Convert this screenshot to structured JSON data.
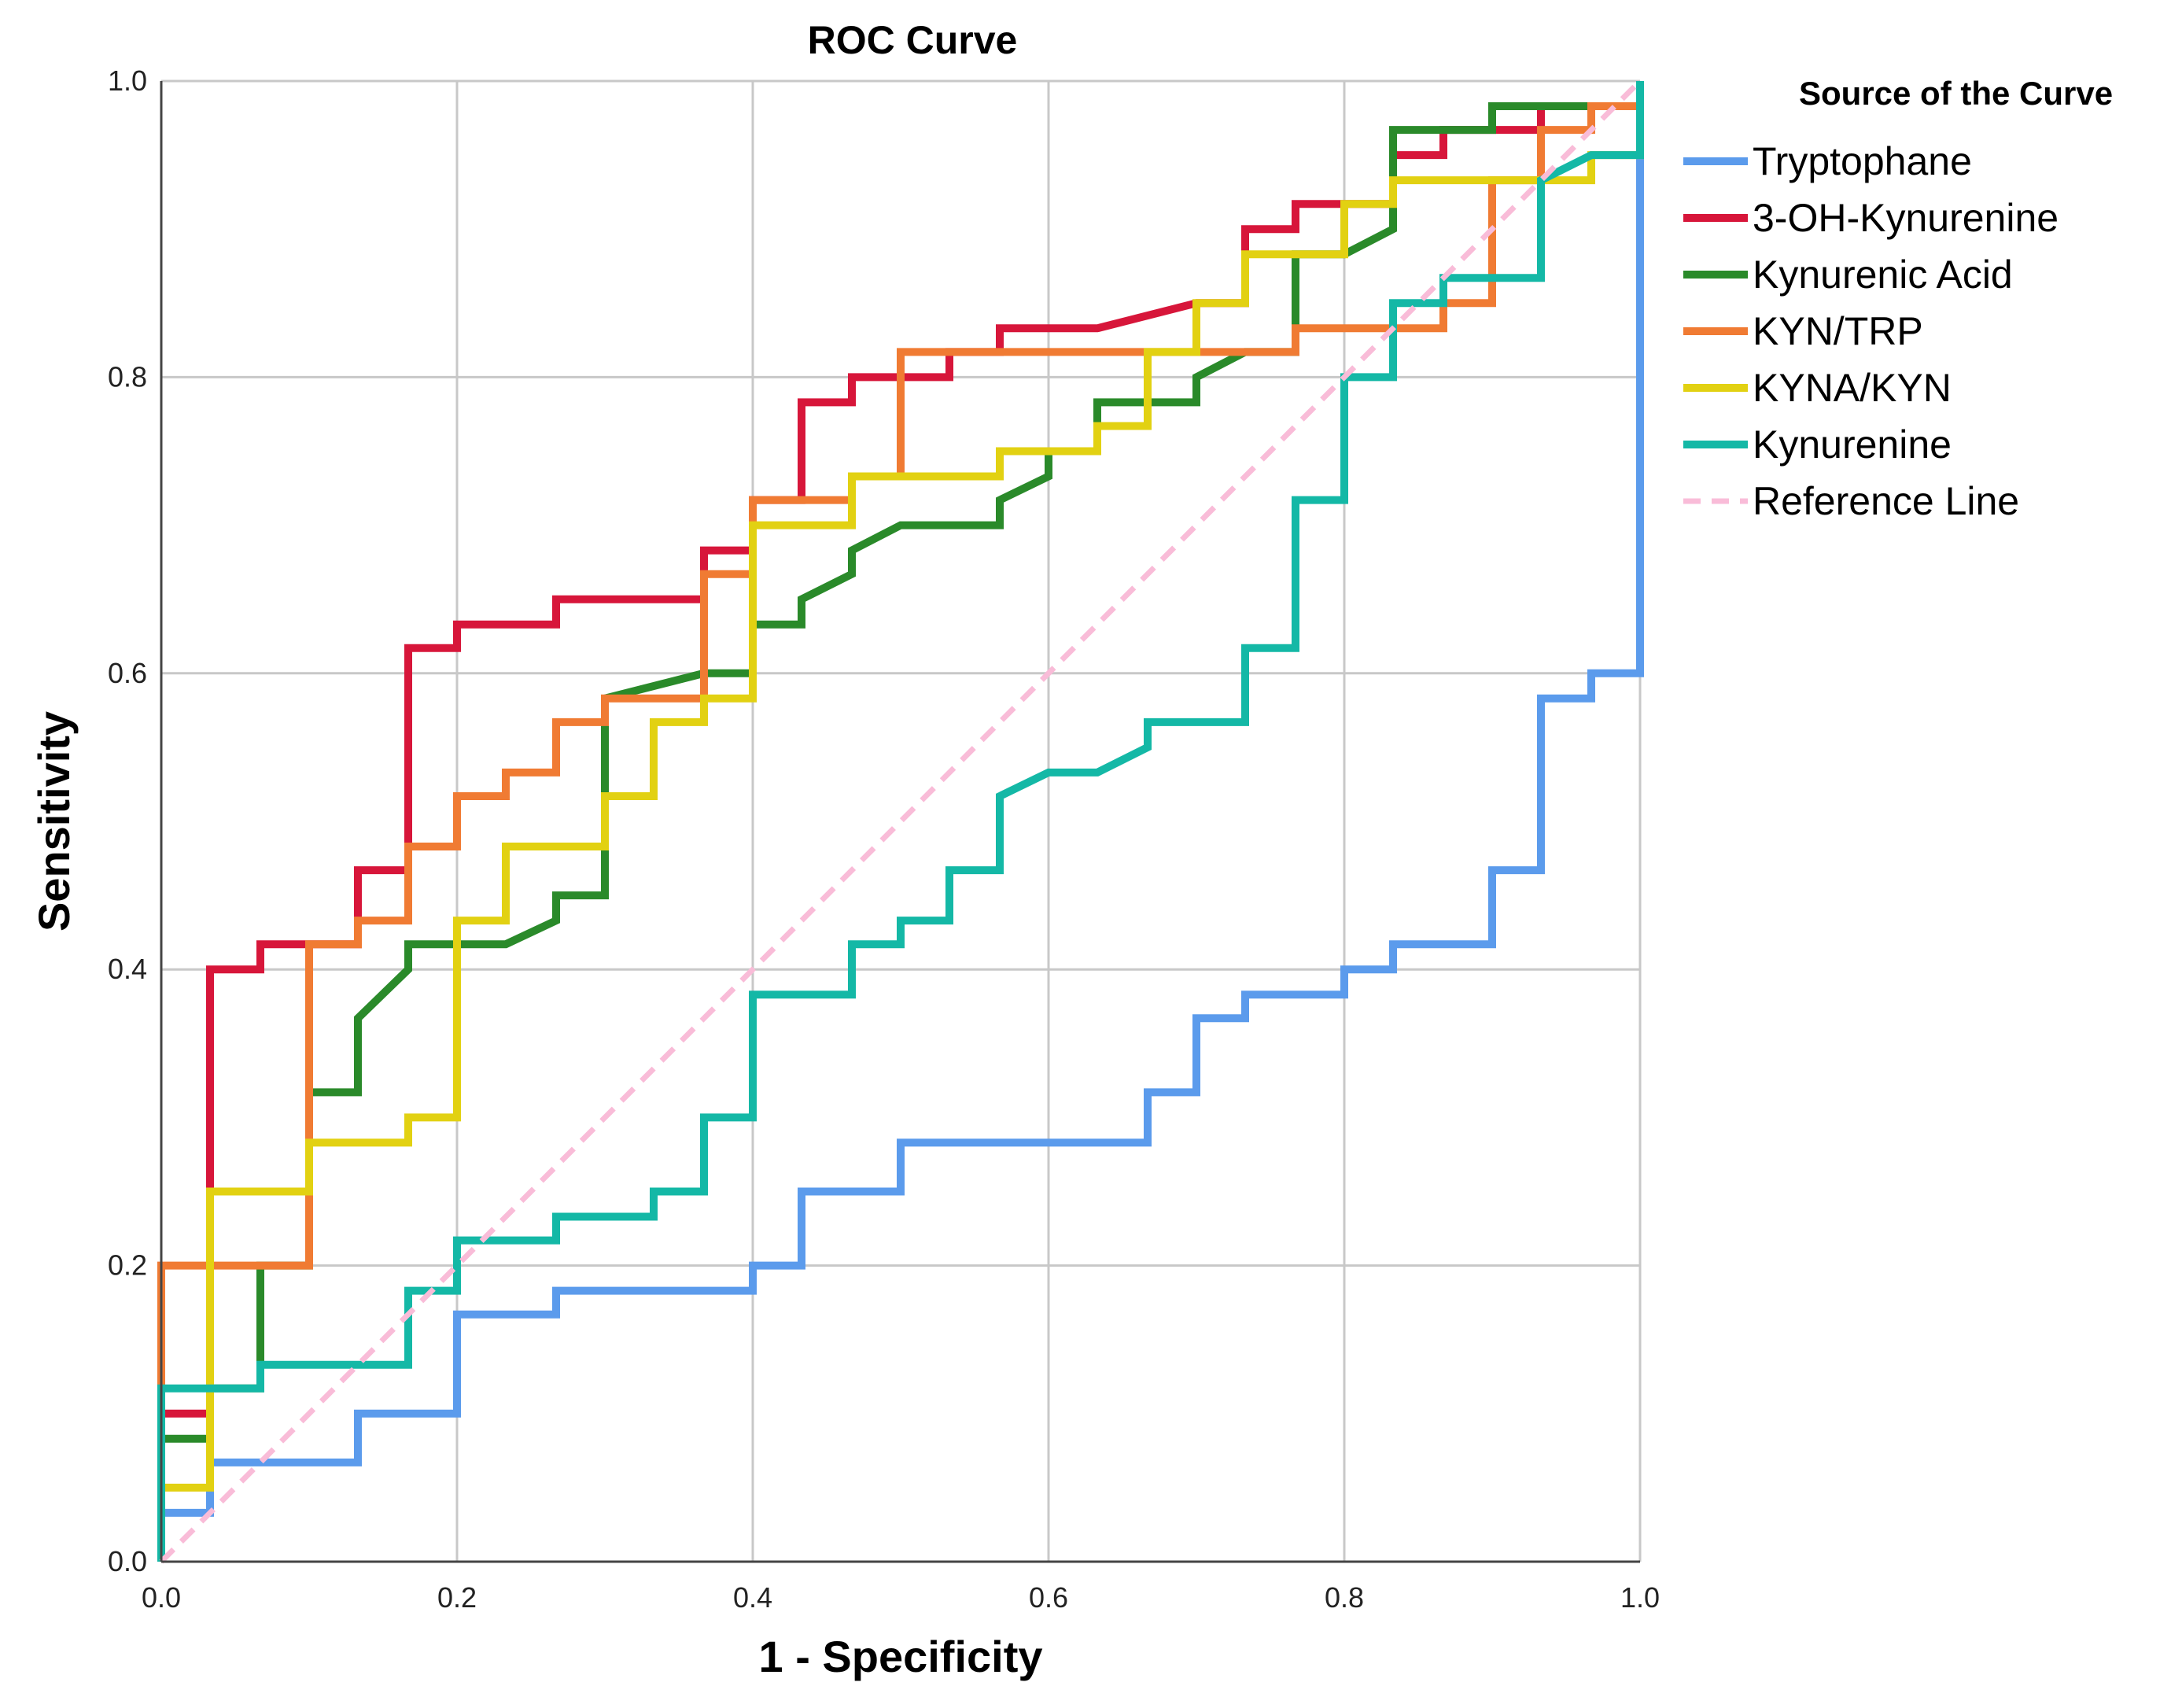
{
  "chart_data": {
    "type": "line",
    "title": "ROC Curve",
    "xlabel": "1 - Specificity",
    "ylabel": "Sensitivity",
    "xlim": [
      0,
      1
    ],
    "ylim": [
      0,
      1
    ],
    "xticks": [
      "0.0",
      "0.2",
      "0.4",
      "0.6",
      "0.8",
      "1.0"
    ],
    "yticks": [
      "0.0",
      "0.2",
      "0.4",
      "0.6",
      "0.8",
      "1.0"
    ],
    "grid": true,
    "legend_title": "Source of the Curve",
    "legend_position": "top-right outside",
    "series": [
      {
        "name": "Tryptophane",
        "color": "#5b9bec",
        "points": [
          [
            0,
            0
          ],
          [
            0,
            0.033
          ],
          [
            0.033,
            0.033
          ],
          [
            0.033,
            0.067
          ],
          [
            0.133,
            0.067
          ],
          [
            0.133,
            0.1
          ],
          [
            0.2,
            0.1
          ],
          [
            0.2,
            0.167
          ],
          [
            0.267,
            0.167
          ],
          [
            0.267,
            0.183
          ],
          [
            0.4,
            0.183
          ],
          [
            0.4,
            0.2
          ],
          [
            0.433,
            0.2
          ],
          [
            0.433,
            0.25
          ],
          [
            0.5,
            0.25
          ],
          [
            0.5,
            0.283
          ],
          [
            0.667,
            0.283
          ],
          [
            0.667,
            0.317
          ],
          [
            0.7,
            0.317
          ],
          [
            0.7,
            0.367
          ],
          [
            0.733,
            0.367
          ],
          [
            0.733,
            0.383
          ],
          [
            0.8,
            0.383
          ],
          [
            0.8,
            0.4
          ],
          [
            0.833,
            0.4
          ],
          [
            0.833,
            0.417
          ],
          [
            0.9,
            0.417
          ],
          [
            0.9,
            0.467
          ],
          [
            0.933,
            0.467
          ],
          [
            0.933,
            0.583
          ],
          [
            0.967,
            0.583
          ],
          [
            0.967,
            0.6
          ],
          [
            1,
            0.6
          ],
          [
            1,
            1
          ]
        ]
      },
      {
        "name": "3-OH-Kynurenine",
        "color": "#d7163a",
        "points": [
          [
            0,
            0
          ],
          [
            0,
            0.1
          ],
          [
            0.033,
            0.1
          ],
          [
            0.033,
            0.4
          ],
          [
            0.067,
            0.4
          ],
          [
            0.067,
            0.417
          ],
          [
            0.133,
            0.417
          ],
          [
            0.133,
            0.467
          ],
          [
            0.167,
            0.467
          ],
          [
            0.167,
            0.617
          ],
          [
            0.2,
            0.617
          ],
          [
            0.2,
            0.633
          ],
          [
            0.267,
            0.633
          ],
          [
            0.267,
            0.65
          ],
          [
            0.367,
            0.65
          ],
          [
            0.367,
            0.683
          ],
          [
            0.4,
            0.683
          ],
          [
            0.4,
            0.717
          ],
          [
            0.433,
            0.717
          ],
          [
            0.433,
            0.783
          ],
          [
            0.467,
            0.783
          ],
          [
            0.467,
            0.8
          ],
          [
            0.533,
            0.8
          ],
          [
            0.533,
            0.817
          ],
          [
            0.567,
            0.817
          ],
          [
            0.567,
            0.833
          ],
          [
            0.633,
            0.833
          ],
          [
            0.7,
            0.85
          ],
          [
            0.733,
            0.85
          ],
          [
            0.733,
            0.9
          ],
          [
            0.767,
            0.9
          ],
          [
            0.767,
            0.917
          ],
          [
            0.833,
            0.917
          ],
          [
            0.833,
            0.95
          ],
          [
            0.867,
            0.95
          ],
          [
            0.867,
            0.967
          ],
          [
            0.933,
            0.967
          ],
          [
            0.933,
            0.983
          ],
          [
            1,
            0.983
          ],
          [
            1,
            1
          ]
        ]
      },
      {
        "name": "Kynurenic Acid",
        "color": "#2a8a2a",
        "points": [
          [
            0,
            0
          ],
          [
            0,
            0.083
          ],
          [
            0.033,
            0.083
          ],
          [
            0.033,
            0.117
          ],
          [
            0.067,
            0.117
          ],
          [
            0.067,
            0.2
          ],
          [
            0.1,
            0.2
          ],
          [
            0.1,
            0.317
          ],
          [
            0.133,
            0.317
          ],
          [
            0.133,
            0.367
          ],
          [
            0.167,
            0.4
          ],
          [
            0.167,
            0.417
          ],
          [
            0.233,
            0.417
          ],
          [
            0.267,
            0.433
          ],
          [
            0.267,
            0.45
          ],
          [
            0.3,
            0.45
          ],
          [
            0.3,
            0.583
          ],
          [
            0.367,
            0.6
          ],
          [
            0.4,
            0.6
          ],
          [
            0.4,
            0.633
          ],
          [
            0.433,
            0.633
          ],
          [
            0.433,
            0.65
          ],
          [
            0.467,
            0.667
          ],
          [
            0.467,
            0.683
          ],
          [
            0.5,
            0.7
          ],
          [
            0.567,
            0.7
          ],
          [
            0.567,
            0.717
          ],
          [
            0.6,
            0.733
          ],
          [
            0.6,
            0.75
          ],
          [
            0.633,
            0.75
          ],
          [
            0.633,
            0.783
          ],
          [
            0.7,
            0.783
          ],
          [
            0.7,
            0.8
          ],
          [
            0.733,
            0.817
          ],
          [
            0.767,
            0.817
          ],
          [
            0.767,
            0.883
          ],
          [
            0.8,
            0.883
          ],
          [
            0.833,
            0.9
          ],
          [
            0.833,
            0.967
          ],
          [
            0.9,
            0.967
          ],
          [
            0.9,
            0.983
          ],
          [
            1,
            0.983
          ],
          [
            1,
            1
          ]
        ]
      },
      {
        "name": "KYN/TRP",
        "color": "#f07b33",
        "points": [
          [
            0,
            0
          ],
          [
            0,
            0.2
          ],
          [
            0.1,
            0.2
          ],
          [
            0.1,
            0.417
          ],
          [
            0.133,
            0.417
          ],
          [
            0.133,
            0.433
          ],
          [
            0.167,
            0.433
          ],
          [
            0.167,
            0.483
          ],
          [
            0.2,
            0.483
          ],
          [
            0.2,
            0.517
          ],
          [
            0.233,
            0.517
          ],
          [
            0.233,
            0.533
          ],
          [
            0.267,
            0.533
          ],
          [
            0.267,
            0.567
          ],
          [
            0.3,
            0.567
          ],
          [
            0.3,
            0.583
          ],
          [
            0.367,
            0.583
          ],
          [
            0.367,
            0.667
          ],
          [
            0.4,
            0.667
          ],
          [
            0.4,
            0.717
          ],
          [
            0.467,
            0.717
          ],
          [
            0.467,
            0.733
          ],
          [
            0.5,
            0.733
          ],
          [
            0.5,
            0.817
          ],
          [
            0.767,
            0.817
          ],
          [
            0.767,
            0.833
          ],
          [
            0.867,
            0.833
          ],
          [
            0.867,
            0.85
          ],
          [
            0.9,
            0.85
          ],
          [
            0.9,
            0.933
          ],
          [
            0.933,
            0.933
          ],
          [
            0.933,
            0.967
          ],
          [
            0.967,
            0.967
          ],
          [
            0.967,
            0.983
          ],
          [
            1,
            0.983
          ],
          [
            1,
            1
          ]
        ]
      },
      {
        "name": "KYNA/KYN",
        "color": "#e2d112",
        "points": [
          [
            0,
            0
          ],
          [
            0,
            0.05
          ],
          [
            0.033,
            0.05
          ],
          [
            0.033,
            0.25
          ],
          [
            0.1,
            0.25
          ],
          [
            0.1,
            0.283
          ],
          [
            0.167,
            0.283
          ],
          [
            0.167,
            0.3
          ],
          [
            0.2,
            0.3
          ],
          [
            0.2,
            0.433
          ],
          [
            0.233,
            0.433
          ],
          [
            0.233,
            0.483
          ],
          [
            0.3,
            0.483
          ],
          [
            0.3,
            0.517
          ],
          [
            0.333,
            0.517
          ],
          [
            0.333,
            0.567
          ],
          [
            0.367,
            0.567
          ],
          [
            0.367,
            0.583
          ],
          [
            0.4,
            0.583
          ],
          [
            0.4,
            0.7
          ],
          [
            0.467,
            0.7
          ],
          [
            0.467,
            0.733
          ],
          [
            0.567,
            0.733
          ],
          [
            0.567,
            0.75
          ],
          [
            0.633,
            0.75
          ],
          [
            0.633,
            0.767
          ],
          [
            0.667,
            0.767
          ],
          [
            0.667,
            0.817
          ],
          [
            0.7,
            0.817
          ],
          [
            0.7,
            0.85
          ],
          [
            0.733,
            0.85
          ],
          [
            0.733,
            0.883
          ],
          [
            0.8,
            0.883
          ],
          [
            0.8,
            0.917
          ],
          [
            0.833,
            0.917
          ],
          [
            0.833,
            0.933
          ],
          [
            0.933,
            0.933
          ],
          [
            0.967,
            0.933
          ],
          [
            0.967,
            0.95
          ],
          [
            1,
            0.95
          ],
          [
            1,
            1
          ]
        ]
      },
      {
        "name": "Kynurenine",
        "color": "#14b8a6",
        "points": [
          [
            0,
            0
          ],
          [
            0,
            0.117
          ],
          [
            0.067,
            0.117
          ],
          [
            0.067,
            0.133
          ],
          [
            0.167,
            0.133
          ],
          [
            0.167,
            0.183
          ],
          [
            0.2,
            0.183
          ],
          [
            0.2,
            0.217
          ],
          [
            0.267,
            0.217
          ],
          [
            0.267,
            0.233
          ],
          [
            0.333,
            0.233
          ],
          [
            0.333,
            0.25
          ],
          [
            0.367,
            0.25
          ],
          [
            0.367,
            0.3
          ],
          [
            0.4,
            0.3
          ],
          [
            0.4,
            0.383
          ],
          [
            0.467,
            0.383
          ],
          [
            0.467,
            0.417
          ],
          [
            0.5,
            0.417
          ],
          [
            0.5,
            0.433
          ],
          [
            0.533,
            0.433
          ],
          [
            0.533,
            0.467
          ],
          [
            0.567,
            0.467
          ],
          [
            0.567,
            0.517
          ],
          [
            0.6,
            0.533
          ],
          [
            0.633,
            0.533
          ],
          [
            0.667,
            0.55
          ],
          [
            0.667,
            0.567
          ],
          [
            0.733,
            0.567
          ],
          [
            0.733,
            0.617
          ],
          [
            0.767,
            0.617
          ],
          [
            0.767,
            0.717
          ],
          [
            0.8,
            0.717
          ],
          [
            0.8,
            0.8
          ],
          [
            0.833,
            0.8
          ],
          [
            0.833,
            0.85
          ],
          [
            0.867,
            0.85
          ],
          [
            0.867,
            0.867
          ],
          [
            0.933,
            0.867
          ],
          [
            0.933,
            0.933
          ],
          [
            0.967,
            0.95
          ],
          [
            1,
            0.95
          ],
          [
            1,
            1
          ]
        ]
      },
      {
        "name": "Reference Line",
        "color": "#f9bcd8",
        "dashed": true,
        "points": [
          [
            0,
            0
          ],
          [
            1,
            1
          ]
        ]
      }
    ]
  }
}
